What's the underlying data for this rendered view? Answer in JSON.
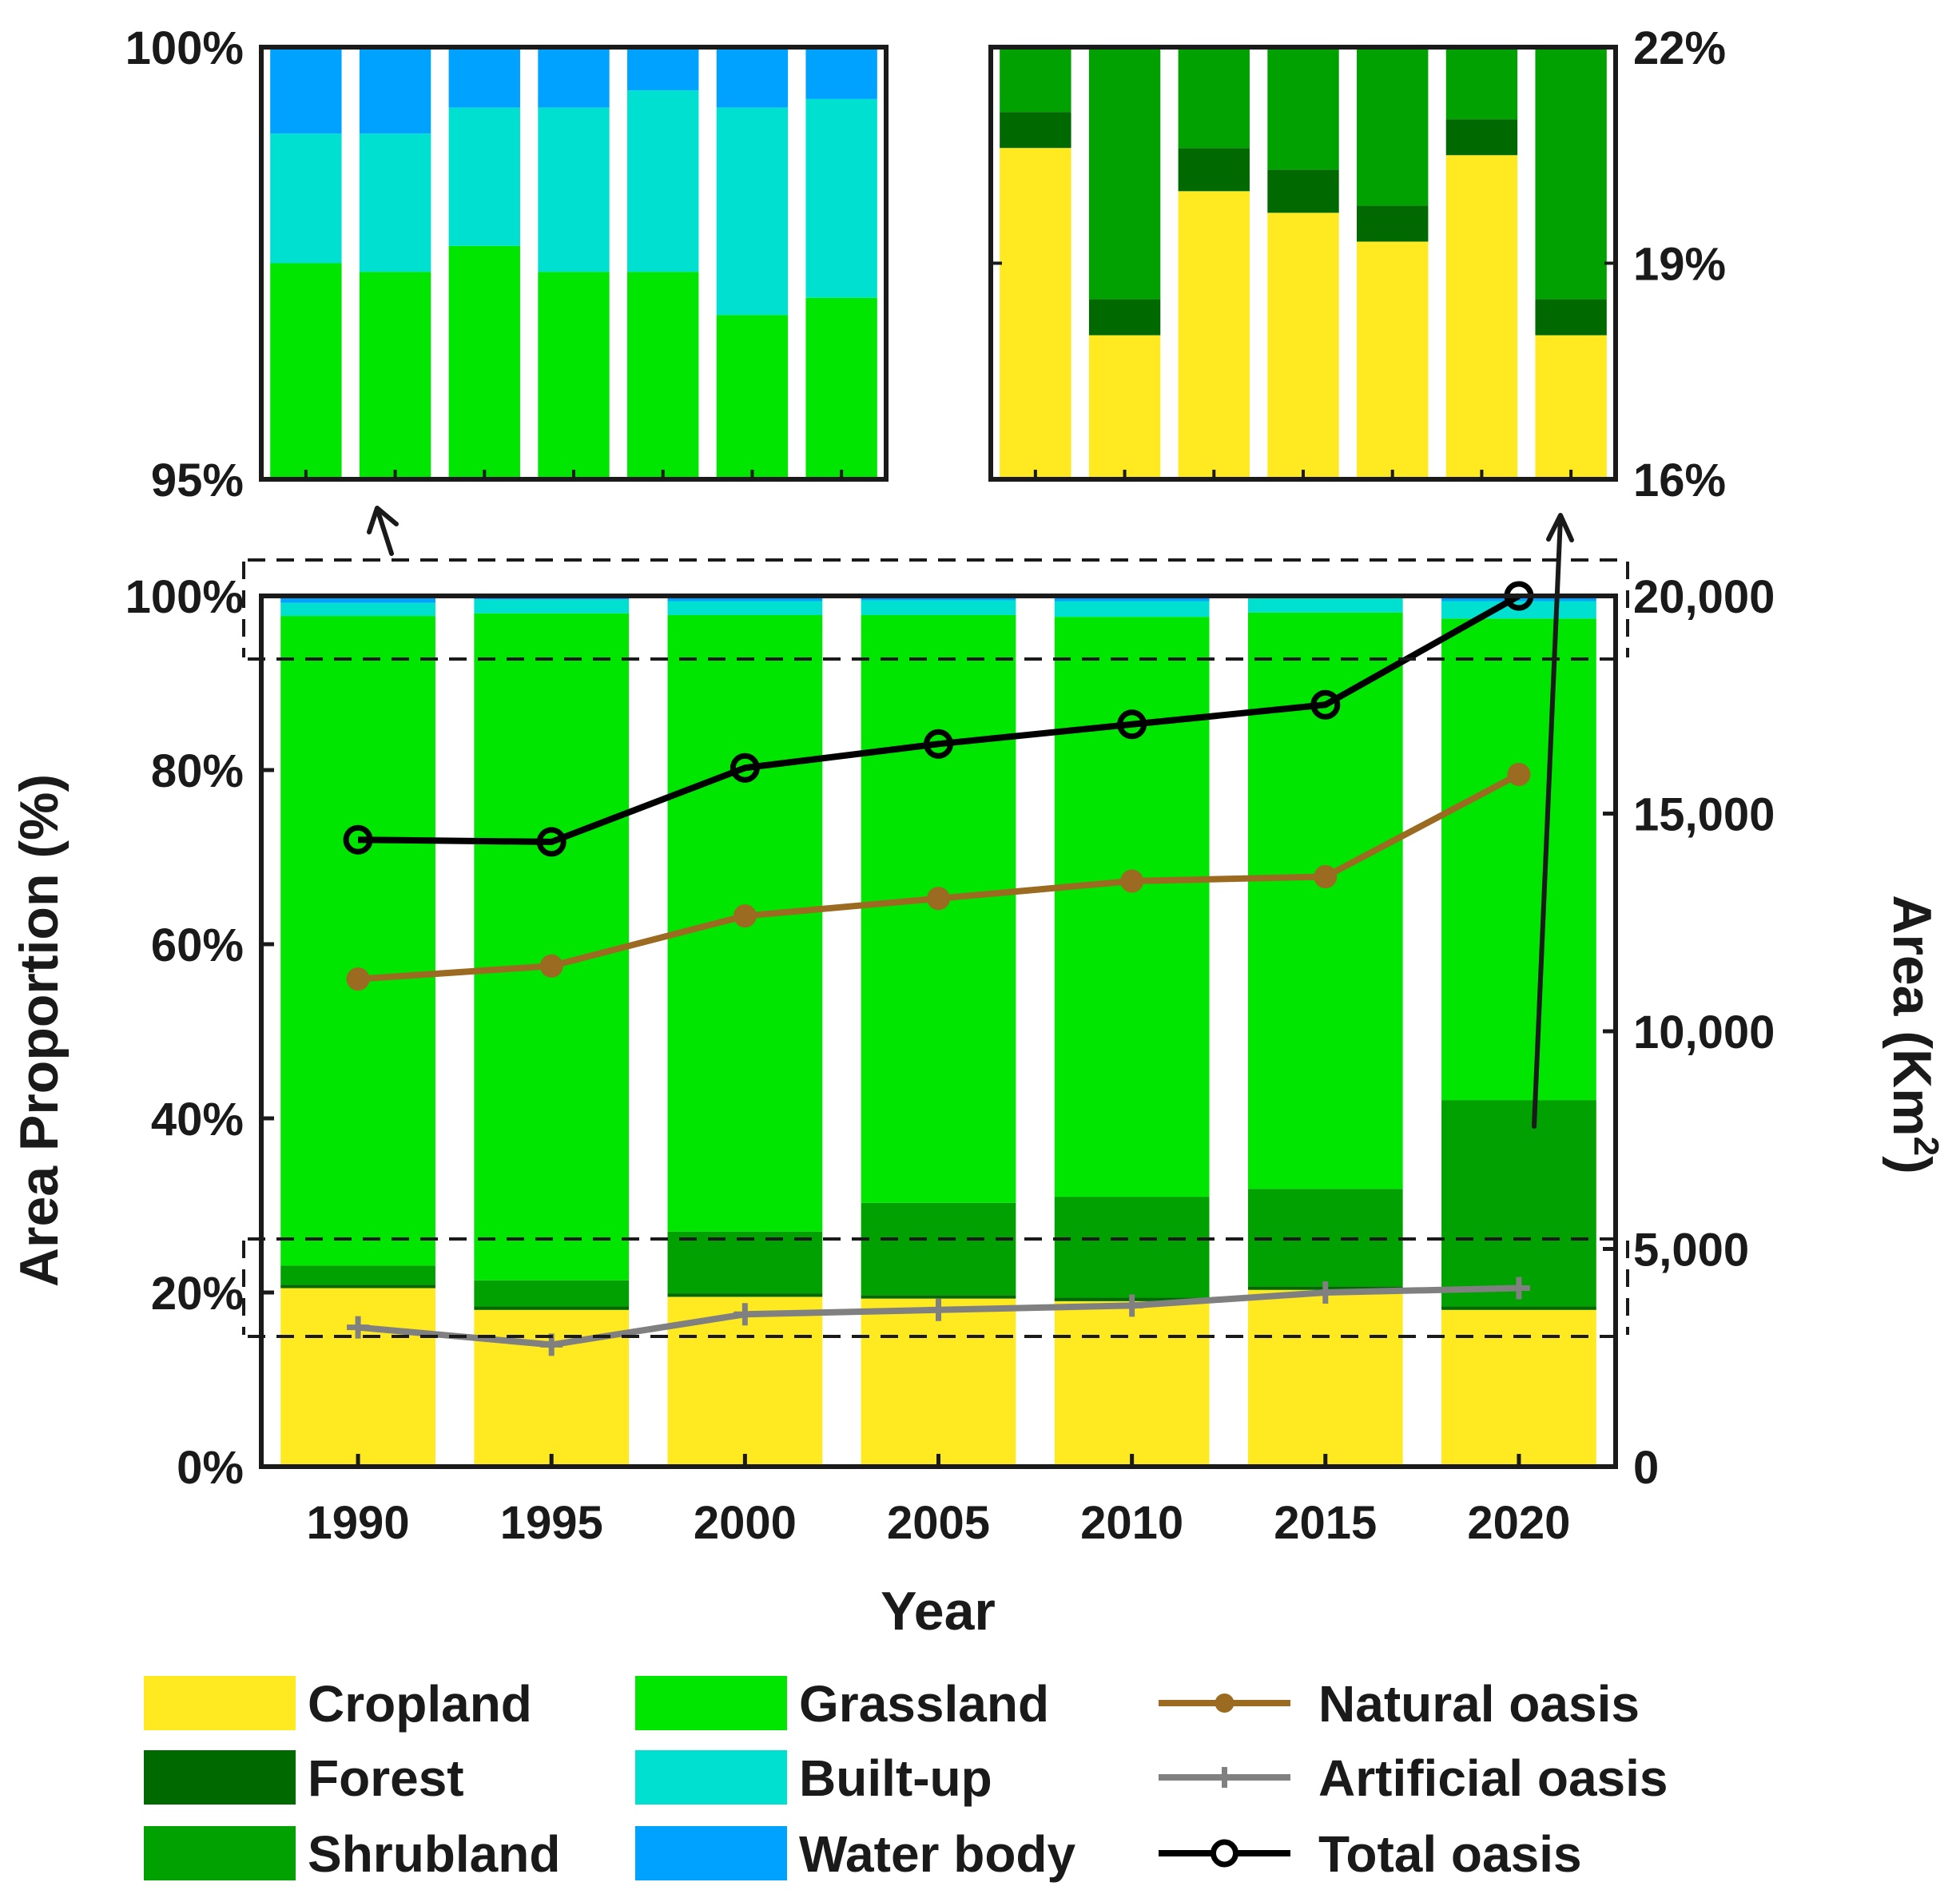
{
  "chart_data": {
    "type": "bar",
    "subtype": "stacked-bar-with-lines",
    "categories": [
      "1990",
      "1995",
      "2000",
      "2005",
      "2010",
      "2015",
      "2020"
    ],
    "xlabel": "Year",
    "ylabel": "Area Proportion (%)",
    "y2label": "Area (Km²)",
    "ylim": [
      0,
      100
    ],
    "y2lim": [
      0,
      20000
    ],
    "yticks": [
      "0%",
      "20%",
      "40%",
      "60%",
      "80%",
      "100%"
    ],
    "y2ticks": [
      "0",
      "5,000",
      "10,000",
      "15,000",
      "20,000"
    ],
    "stack_series": [
      {
        "name": "Cropland",
        "color": "#FFE920",
        "values": [
          20.5,
          18.0,
          19.5,
          19.3,
          19.0,
          20.3,
          18.0
        ]
      },
      {
        "name": "Forest",
        "color": "#006A00",
        "values": [
          0.4,
          0.4,
          0.4,
          0.4,
          0.4,
          0.4,
          0.4
        ]
      },
      {
        "name": "Shrubland",
        "color": "#00A100",
        "values": [
          2.2,
          3.0,
          7.1,
          10.6,
          11.6,
          11.2,
          23.7
        ]
      },
      {
        "name": "Grassland",
        "color": "#00E600",
        "values": [
          74.6,
          76.6,
          70.8,
          67.5,
          66.6,
          66.2,
          55.3
        ]
      },
      {
        "name": "Built-up",
        "color": "#00E0D0",
        "values": [
          1.5,
          1.6,
          1.6,
          1.7,
          1.8,
          1.9,
          2.0
        ]
      },
      {
        "name": "Water body",
        "color": "#00A2FF",
        "values": [
          0.8,
          0.4,
          0.6,
          0.5,
          0.6,
          0.3,
          0.6
        ]
      }
    ],
    "line_series": [
      {
        "name": "Natural oasis",
        "color": "#9C6B22",
        "marker": "filled-circle",
        "values": [
          11200,
          11500,
          12650,
          13050,
          13450,
          13550,
          15900
        ]
      },
      {
        "name": "Artificial oasis",
        "color": "#808080",
        "marker": "plus",
        "values": [
          3200,
          2800,
          3500,
          3600,
          3700,
          4000,
          4100
        ]
      },
      {
        "name": "Total oasis",
        "color": "#000000",
        "marker": "open-circle",
        "values": [
          14400,
          14350,
          16050,
          16600,
          17050,
          17500,
          20000
        ]
      }
    ],
    "inset_top_left": {
      "ylim": [
        95,
        100
      ],
      "yticks": [
        "95%",
        "100%"
      ],
      "grassland_top": [
        97.5,
        97.4,
        97.7,
        97.4,
        97.4,
        96.9,
        97.1
      ],
      "builtup_top": [
        99.0,
        99.0,
        99.3,
        99.3,
        99.5,
        99.3,
        99.4
      ]
    },
    "inset_top_right": {
      "ylim": [
        16,
        22
      ],
      "yticks": [
        "16%",
        "19%",
        "22%"
      ],
      "cropland_top": [
        20.6,
        18.0,
        20.0,
        19.7,
        19.3,
        20.5,
        18.0
      ],
      "forest_top": [
        21.1,
        18.5,
        20.6,
        20.3,
        19.8,
        21.0,
        18.5
      ]
    },
    "legend": {
      "placement": "bottom",
      "items": [
        {
          "label": "Cropland",
          "color": "#FFE920",
          "kind": "patch"
        },
        {
          "label": "Forest",
          "color": "#006A00",
          "kind": "patch"
        },
        {
          "label": "Shrubland",
          "color": "#00A100",
          "kind": "patch"
        },
        {
          "label": "Grassland",
          "color": "#00E600",
          "kind": "patch"
        },
        {
          "label": "Built-up",
          "color": "#00E0D0",
          "kind": "patch"
        },
        {
          "label": "Water body",
          "color": "#00A2FF",
          "kind": "patch"
        },
        {
          "label": "Natural oasis",
          "color": "#9C6B22",
          "kind": "line-filled-circle"
        },
        {
          "label": "Artificial oasis",
          "color": "#808080",
          "kind": "line-plus"
        },
        {
          "label": "Total oasis",
          "color": "#000000",
          "kind": "line-open-circle"
        }
      ]
    }
  }
}
